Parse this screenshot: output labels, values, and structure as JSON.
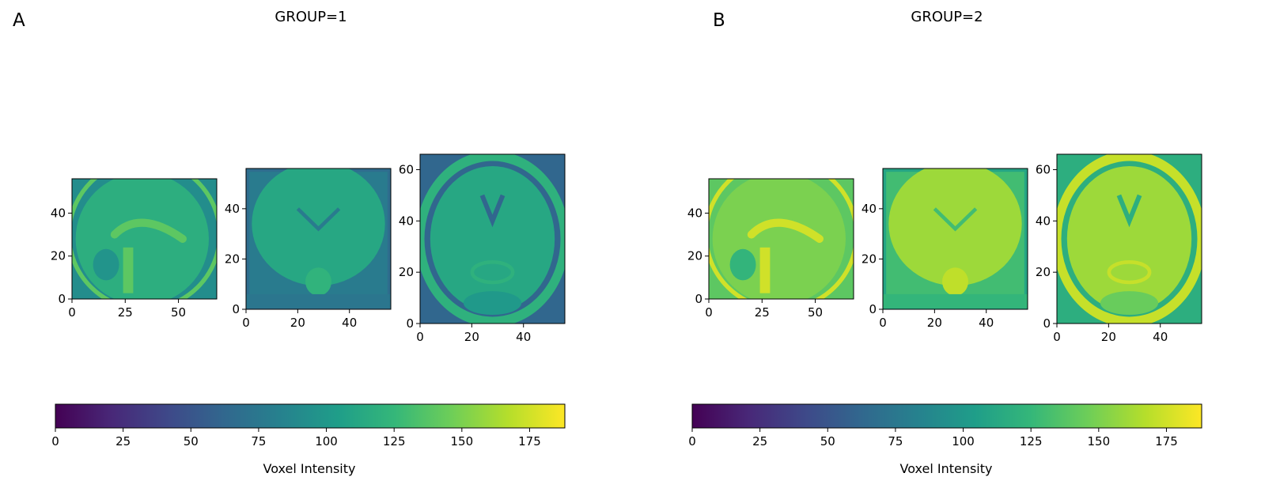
{
  "colors": {
    "viridis": [
      "#440154",
      "#482878",
      "#3e4989",
      "#31688e",
      "#26828e",
      "#1f9e89",
      "#35b779",
      "#6ece58",
      "#b5de2b",
      "#fde725"
    ],
    "frame": "#000000"
  },
  "panels": [
    {
      "letter": "A",
      "title": "GROUP=1",
      "colorbar": {
        "label": "Voxel Intensity",
        "vmin": 0,
        "vmax": 188,
        "ticks": [
          "0",
          "25",
          "50",
          "75",
          "100",
          "125",
          "150",
          "175"
        ]
      },
      "slices": [
        {
          "view": "sagittal",
          "xlim": [
            0,
            68
          ],
          "ylim": [
            0,
            56
          ],
          "xticks": [
            "0",
            "25",
            "50"
          ],
          "yticks": [
            "0",
            "20",
            "40"
          ],
          "xtick_values": [
            0,
            25,
            50
          ],
          "ytick_values": [
            0,
            20,
            40
          ],
          "background": 92,
          "tissue": 118,
          "bright": 140
        },
        {
          "view": "coronal",
          "xlim": [
            0,
            56
          ],
          "ylim": [
            0,
            56
          ],
          "xticks": [
            "0",
            "20",
            "40"
          ],
          "yticks": [
            "0",
            "20",
            "40"
          ],
          "xtick_values": [
            0,
            20,
            40
          ],
          "ytick_values": [
            0,
            20,
            40
          ],
          "background": 78,
          "tissue": 112,
          "bright": 122
        },
        {
          "view": "axial",
          "xlim": [
            0,
            56
          ],
          "ylim": [
            0,
            66
          ],
          "xticks": [
            "0",
            "20",
            "40"
          ],
          "yticks": [
            "0",
            "20",
            "40",
            "60"
          ],
          "xtick_values": [
            0,
            20,
            40
          ],
          "ytick_values": [
            0,
            20,
            40,
            60
          ],
          "background": 62,
          "tissue": 112,
          "bright": 120
        }
      ]
    },
    {
      "letter": "B",
      "title": "GROUP=2",
      "colorbar": {
        "label": "Voxel Intensity",
        "vmin": 0,
        "vmax": 188,
        "ticks": [
          "0",
          "25",
          "50",
          "75",
          "100",
          "125",
          "150",
          "175"
        ]
      },
      "slices": [
        {
          "view": "sagittal",
          "xlim": [
            0,
            68
          ],
          "ylim": [
            0,
            56
          ],
          "xticks": [
            "0",
            "25",
            "50"
          ],
          "yticks": [
            "0",
            "20",
            "40"
          ],
          "xtick_values": [
            0,
            25,
            50
          ],
          "ytick_values": [
            0,
            20,
            40
          ],
          "background": 140,
          "tissue": 150,
          "bright": 175
        },
        {
          "view": "coronal",
          "xlim": [
            0,
            56
          ],
          "ylim": [
            0,
            56
          ],
          "xticks": [
            "0",
            "20",
            "40"
          ],
          "yticks": [
            "0",
            "20",
            "40"
          ],
          "xtick_values": [
            0,
            20,
            40
          ],
          "ytick_values": [
            0,
            20,
            40
          ],
          "background": 130,
          "tissue": 160,
          "bright": 170
        },
        {
          "view": "axial",
          "xlim": [
            0,
            56
          ],
          "ylim": [
            0,
            66
          ],
          "xticks": [
            "0",
            "20",
            "40"
          ],
          "yticks": [
            "0",
            "20",
            "40",
            "60"
          ],
          "xtick_values": [
            0,
            20,
            40
          ],
          "ytick_values": [
            0,
            20,
            40,
            60
          ],
          "background": 118,
          "tissue": 160,
          "bright": 172
        }
      ]
    }
  ],
  "chart_data": [
    {
      "type": "heatmap",
      "title": "GROUP=1",
      "panel_label": "A",
      "colorbar_label": "Voxel Intensity",
      "value_range": [
        0,
        188
      ],
      "colormap": "viridis",
      "images": [
        {
          "view": "sagittal",
          "x_range": [
            0,
            68
          ],
          "y_range": [
            0,
            56
          ]
        },
        {
          "view": "coronal",
          "x_range": [
            0,
            56
          ],
          "y_range": [
            0,
            56
          ]
        },
        {
          "view": "axial",
          "x_range": [
            0,
            56
          ],
          "y_range": [
            0,
            66
          ]
        }
      ],
      "colorbar_ticks": [
        0,
        25,
        50,
        75,
        100,
        125,
        150,
        175
      ]
    },
    {
      "type": "heatmap",
      "title": "GROUP=2",
      "panel_label": "B",
      "colorbar_label": "Voxel Intensity",
      "value_range": [
        0,
        188
      ],
      "colormap": "viridis",
      "images": [
        {
          "view": "sagittal",
          "x_range": [
            0,
            68
          ],
          "y_range": [
            0,
            56
          ]
        },
        {
          "view": "coronal",
          "x_range": [
            0,
            56
          ],
          "y_range": [
            0,
            56
          ]
        },
        {
          "view": "axial",
          "x_range": [
            0,
            56
          ],
          "y_range": [
            0,
            66
          ]
        }
      ],
      "colorbar_ticks": [
        0,
        25,
        50,
        75,
        100,
        125,
        150,
        175
      ]
    }
  ]
}
